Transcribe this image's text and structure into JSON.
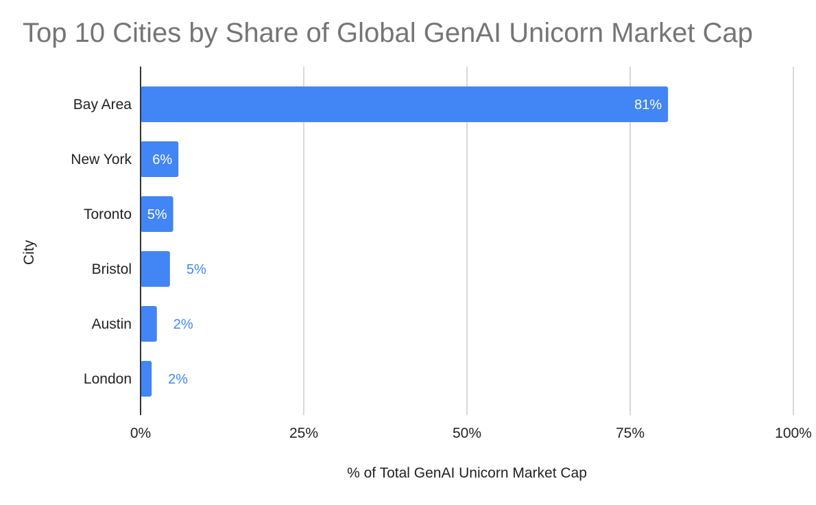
{
  "chart_data": {
    "type": "bar",
    "orientation": "horizontal",
    "title": "Top 10 Cities by Share of Global GenAI Unicorn Market Cap",
    "xlabel": "% of Total GenAI Unicorn Market Cap",
    "ylabel": "City",
    "categories": [
      "Bay Area",
      "New York",
      "Toronto",
      "Bristol",
      "Austin",
      "London"
    ],
    "values": [
      80.8,
      5.8,
      5.0,
      4.5,
      2.5,
      1.7
    ],
    "data_labels": [
      "81%",
      "6%",
      "5%",
      "5%",
      "2%",
      "2%"
    ],
    "xlim": [
      0,
      100
    ],
    "x_ticks": [
      0,
      25,
      50,
      75,
      100
    ],
    "x_tick_labels": [
      "0%",
      "25%",
      "50%",
      "75%",
      "100%"
    ],
    "grid": "vertical",
    "legend": "none",
    "colors": {
      "bar": "#4285f4",
      "label_inside": "#ffffff",
      "label_outside": "#4285f4",
      "grid": "#cccccc",
      "axis": "#333333",
      "title": "#757575"
    }
  }
}
